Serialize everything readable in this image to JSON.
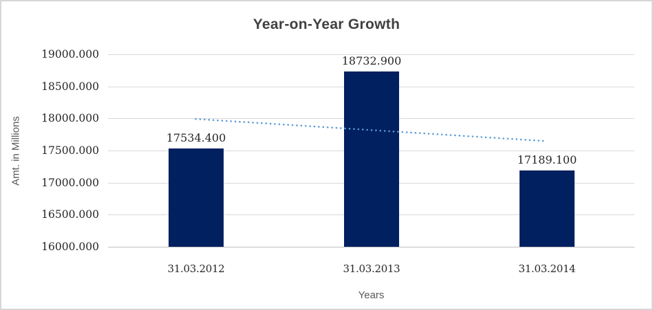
{
  "chart_data": {
    "type": "bar",
    "title": "Year-on-Year Growth",
    "xlabel": "Years",
    "ylabel": "Amt. in Millions",
    "categories": [
      "31.03.2012",
      "31.03.2013",
      "31.03.2014"
    ],
    "values": [
      17534.4,
      18732.9,
      17189.1
    ],
    "data_labels": [
      "17534.400",
      "18732.900",
      "17189.100"
    ],
    "y_tick_labels": [
      "19000.000",
      "18500.000",
      "18000.000",
      "17500.000",
      "17000.000",
      "16500.000",
      "16000.000"
    ],
    "y_tick_values": [
      19000,
      18500,
      18000,
      17500,
      17000,
      16500,
      16000
    ],
    "ylim": [
      16000,
      19000
    ],
    "y_step": 500,
    "grid": "horizontal",
    "legend": "none",
    "trendline": {
      "style": "dotted",
      "start_value": 17991.45,
      "end_value": 17646.15
    },
    "colors": {
      "bar": "#002060",
      "trendline": "#5b9bd5",
      "gridline": "#d9d9d9",
      "axis_line": "#bfbfbf",
      "title_text": "#404040",
      "axis_title_text": "#595959",
      "tick_text": "#262626",
      "frame_border": "#d6d6d6"
    }
  }
}
